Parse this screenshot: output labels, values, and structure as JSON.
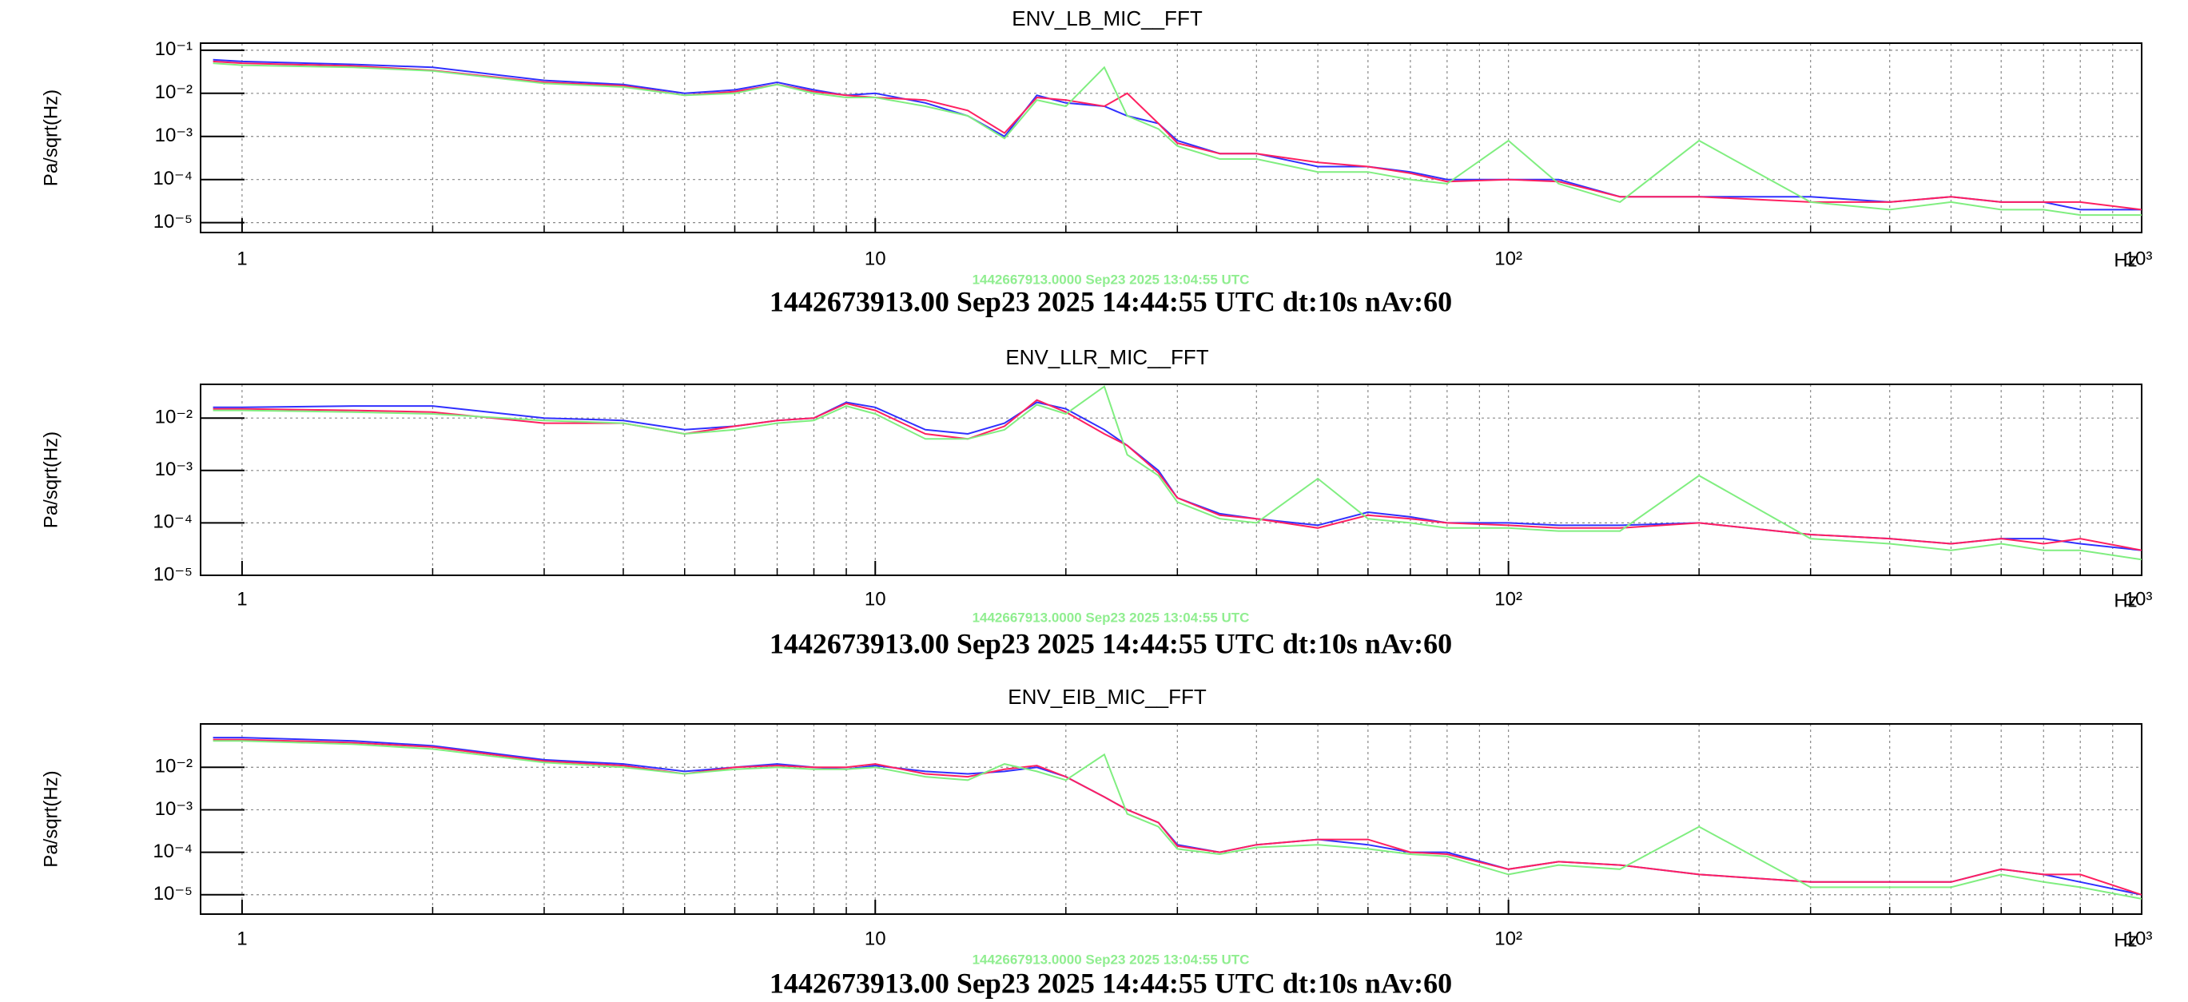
{
  "chart_data": [
    {
      "type": "line",
      "title": "ENV_LB_MIC__FFT",
      "ylabel": "Pa/sqrt(Hz)",
      "xlabel": "Hz",
      "reference_time": "1442667913.0000 Sep23 2025 13:04:55 UTC",
      "reference_color": "#90ee90",
      "subtitle": "1442673913.00 Sep23 2025 14:44:55 UTC dt:10s nAv:60",
      "xlog": true,
      "ylog": true,
      "grid": true,
      "xlim": [
        0.86,
        1000
      ],
      "ylim": [
        5.9e-06,
        0.146
      ],
      "xticks": [
        1,
        10,
        {
          "value": 100,
          "label": "10²"
        },
        {
          "value": 1000,
          "label": "10³"
        }
      ],
      "xminorticks": [
        2,
        3,
        4,
        5,
        6,
        7,
        8,
        9,
        20,
        30,
        40,
        50,
        60,
        70,
        80,
        90,
        200,
        300,
        400,
        500,
        600,
        700,
        800,
        900
      ],
      "yticks": [
        {
          "value": 0.1,
          "label": "10⁻¹"
        },
        {
          "value": 0.01,
          "label": "10⁻²"
        },
        {
          "value": 0.001,
          "label": "10⁻³"
        },
        {
          "value": 0.0001,
          "label": "10⁻⁴"
        },
        {
          "value": 1e-05,
          "label": "10⁻⁵"
        }
      ],
      "x": [
        0.9,
        1,
        1.5,
        2,
        3,
        4,
        5,
        6,
        7,
        8,
        9,
        10,
        12,
        14,
        16,
        18,
        20,
        23,
        25,
        28,
        30,
        35,
        40,
        50,
        60,
        70,
        80,
        100,
        120,
        150,
        200,
        300,
        400,
        500,
        600,
        700,
        800,
        1000
      ],
      "series": [
        {
          "color": "#3030ff",
          "values": [
            0.06,
            0.055,
            0.047,
            0.04,
            0.02,
            0.016,
            0.01,
            0.012,
            0.018,
            0.012,
            0.009,
            0.01,
            0.006,
            0.003,
            0.001,
            0.009,
            0.006,
            0.005,
            0.003,
            0.002,
            0.0008,
            0.0004,
            0.0004,
            0.0002,
            0.0002,
            0.00015,
            0.0001,
            0.0001,
            0.0001,
            4e-05,
            4e-05,
            4e-05,
            3e-05,
            4e-05,
            3e-05,
            3e-05,
            2e-05,
            2e-05
          ]
        },
        {
          "color": "#ff2060",
          "values": [
            0.055,
            0.05,
            0.043,
            0.034,
            0.018,
            0.015,
            0.009,
            0.011,
            0.016,
            0.011,
            0.009,
            0.008,
            0.007,
            0.004,
            0.0012,
            0.008,
            0.007,
            0.005,
            0.01,
            0.002,
            0.0007,
            0.0004,
            0.0004,
            0.00025,
            0.0002,
            0.00014,
            9e-05,
            0.0001,
            9e-05,
            4e-05,
            4e-05,
            3e-05,
            3e-05,
            4e-05,
            3e-05,
            3e-05,
            3e-05,
            2e-05
          ]
        },
        {
          "color": "#80ee80",
          "values": [
            0.05,
            0.045,
            0.04,
            0.033,
            0.017,
            0.014,
            0.009,
            0.01,
            0.016,
            0.01,
            0.008,
            0.008,
            0.005,
            0.003,
            0.0009,
            0.007,
            0.005,
            0.04,
            0.003,
            0.0015,
            0.0006,
            0.0003,
            0.0003,
            0.00015,
            0.00015,
            0.0001,
            8e-05,
            0.0008,
            8e-05,
            3e-05,
            0.0008,
            3e-05,
            2e-05,
            3e-05,
            2e-05,
            2e-05,
            1.5e-05,
            1.5e-05
          ]
        }
      ]
    },
    {
      "type": "line",
      "title": "ENV_LLR_MIC__FFT",
      "ylabel": "Pa/sqrt(Hz)",
      "xlabel": "Hz",
      "reference_time": "1442667913.0000 Sep23 2025 13:04:55 UTC",
      "reference_color": "#90ee90",
      "subtitle": "1442673913.00 Sep23 2025 14:44:55 UTC dt:10s nAv:60",
      "xlog": true,
      "ylog": true,
      "grid": true,
      "xlim": [
        0.86,
        1000
      ],
      "ylim": [
        1e-05,
        0.044
      ],
      "xticks": [
        1,
        10,
        {
          "value": 100,
          "label": "10²"
        },
        {
          "value": 1000,
          "label": "10³"
        }
      ],
      "xminorticks": [
        2,
        3,
        4,
        5,
        6,
        7,
        8,
        9,
        20,
        30,
        40,
        50,
        60,
        70,
        80,
        90,
        200,
        300,
        400,
        500,
        600,
        700,
        800,
        900
      ],
      "yticks": [
        {
          "value": 0.01,
          "label": "10⁻²"
        },
        {
          "value": 0.001,
          "label": "10⁻³"
        },
        {
          "value": 0.0001,
          "label": "10⁻⁴"
        },
        {
          "value": 1e-05,
          "label": "10⁻⁵"
        }
      ],
      "x": [
        0.9,
        1,
        1.5,
        2,
        3,
        4,
        5,
        6,
        7,
        8,
        9,
        10,
        12,
        14,
        16,
        18,
        20,
        23,
        25,
        28,
        30,
        35,
        40,
        50,
        60,
        70,
        80,
        100,
        120,
        150,
        200,
        300,
        400,
        500,
        600,
        700,
        800,
        1000
      ],
      "series": [
        {
          "color": "#3030ff",
          "values": [
            0.016,
            0.016,
            0.017,
            0.017,
            0.01,
            0.009,
            0.006,
            0.007,
            0.009,
            0.01,
            0.02,
            0.016,
            0.006,
            0.005,
            0.008,
            0.02,
            0.015,
            0.006,
            0.003,
            0.001,
            0.0003,
            0.00015,
            0.00012,
            9e-05,
            0.00016,
            0.00013,
            0.0001,
            0.0001,
            9e-05,
            9e-05,
            0.0001,
            6e-05,
            5e-05,
            4e-05,
            5e-05,
            5e-05,
            4e-05,
            3e-05
          ]
        },
        {
          "color": "#ff2060",
          "values": [
            0.015,
            0.015,
            0.014,
            0.013,
            0.008,
            0.008,
            0.005,
            0.007,
            0.009,
            0.01,
            0.019,
            0.014,
            0.005,
            0.004,
            0.007,
            0.022,
            0.013,
            0.005,
            0.003,
            0.0009,
            0.0003,
            0.00014,
            0.00012,
            8e-05,
            0.00014,
            0.00012,
            0.0001,
            9e-05,
            8e-05,
            8e-05,
            0.0001,
            6e-05,
            5e-05,
            4e-05,
            5e-05,
            4e-05,
            5e-05,
            3e-05
          ]
        },
        {
          "color": "#80ee80",
          "values": [
            0.014,
            0.014,
            0.013,
            0.012,
            0.009,
            0.008,
            0.005,
            0.006,
            0.008,
            0.009,
            0.017,
            0.012,
            0.004,
            0.004,
            0.006,
            0.018,
            0.012,
            0.04,
            0.002,
            0.0008,
            0.00025,
            0.00012,
            0.0001,
            0.0007,
            0.00012,
            0.0001,
            8e-05,
            8e-05,
            7e-05,
            7e-05,
            0.0008,
            5e-05,
            4e-05,
            3e-05,
            4e-05,
            3e-05,
            3e-05,
            2e-05
          ]
        }
      ]
    },
    {
      "type": "line",
      "title": "ENV_EIB_MIC__FFT",
      "ylabel": "Pa/sqrt(Hz)",
      "xlabel": "Hz",
      "reference_time": "1442667913.0000 Sep23 2025 13:04:55 UTC",
      "reference_color": "#90ee90",
      "subtitle": "1442673913.00 Sep23 2025 14:44:55 UTC dt:10s nAv:60",
      "xlog": true,
      "ylog": true,
      "grid": true,
      "xlim": [
        0.86,
        1000
      ],
      "ylim": [
        3.5e-06,
        0.105
      ],
      "xticks": [
        1,
        10,
        {
          "value": 100,
          "label": "10²"
        },
        {
          "value": 1000,
          "label": "10³"
        }
      ],
      "xminorticks": [
        2,
        3,
        4,
        5,
        6,
        7,
        8,
        9,
        20,
        30,
        40,
        50,
        60,
        70,
        80,
        90,
        200,
        300,
        400,
        500,
        600,
        700,
        800,
        900
      ],
      "yticks": [
        {
          "value": 0.01,
          "label": "10⁻²"
        },
        {
          "value": 0.001,
          "label": "10⁻³"
        },
        {
          "value": 0.0001,
          "label": "10⁻⁴"
        },
        {
          "value": 1e-05,
          "label": "10⁻⁵"
        }
      ],
      "x": [
        0.9,
        1,
        1.5,
        2,
        3,
        4,
        5,
        6,
        7,
        8,
        9,
        10,
        12,
        14,
        16,
        18,
        20,
        23,
        25,
        28,
        30,
        35,
        40,
        50,
        60,
        70,
        80,
        100,
        120,
        150,
        200,
        300,
        400,
        500,
        600,
        700,
        800,
        1000
      ],
      "series": [
        {
          "color": "#3030ff",
          "values": [
            0.05,
            0.05,
            0.042,
            0.032,
            0.015,
            0.012,
            0.008,
            0.01,
            0.012,
            0.01,
            0.009,
            0.011,
            0.008,
            0.007,
            0.008,
            0.01,
            0.006,
            0.002,
            0.001,
            0.0005,
            0.00015,
            0.0001,
            0.00015,
            0.0002,
            0.00015,
            0.0001,
            0.0001,
            4e-05,
            6e-05,
            5e-05,
            3e-05,
            2e-05,
            2e-05,
            2e-05,
            4e-05,
            3e-05,
            2e-05,
            1e-05
          ]
        },
        {
          "color": "#ff2060",
          "values": [
            0.045,
            0.045,
            0.038,
            0.03,
            0.014,
            0.011,
            0.007,
            0.01,
            0.011,
            0.01,
            0.01,
            0.012,
            0.007,
            0.006,
            0.009,
            0.011,
            0.006,
            0.002,
            0.001,
            0.0005,
            0.00014,
            0.0001,
            0.00015,
            0.0002,
            0.0002,
            0.0001,
            9e-05,
            4e-05,
            6e-05,
            5e-05,
            3e-05,
            2e-05,
            2e-05,
            2e-05,
            4e-05,
            3e-05,
            3e-05,
            1e-05
          ]
        },
        {
          "color": "#80ee80",
          "values": [
            0.042,
            0.042,
            0.035,
            0.027,
            0.013,
            0.01,
            0.007,
            0.009,
            0.01,
            0.009,
            0.009,
            0.01,
            0.006,
            0.005,
            0.012,
            0.008,
            0.005,
            0.02,
            0.0008,
            0.0004,
            0.00012,
            9e-05,
            0.00013,
            0.00015,
            0.00012,
            9e-05,
            8e-05,
            3e-05,
            5e-05,
            4e-05,
            0.0004,
            1.5e-05,
            1.5e-05,
            1.5e-05,
            3e-05,
            2e-05,
            1.5e-05,
            8e-06
          ]
        }
      ]
    }
  ]
}
